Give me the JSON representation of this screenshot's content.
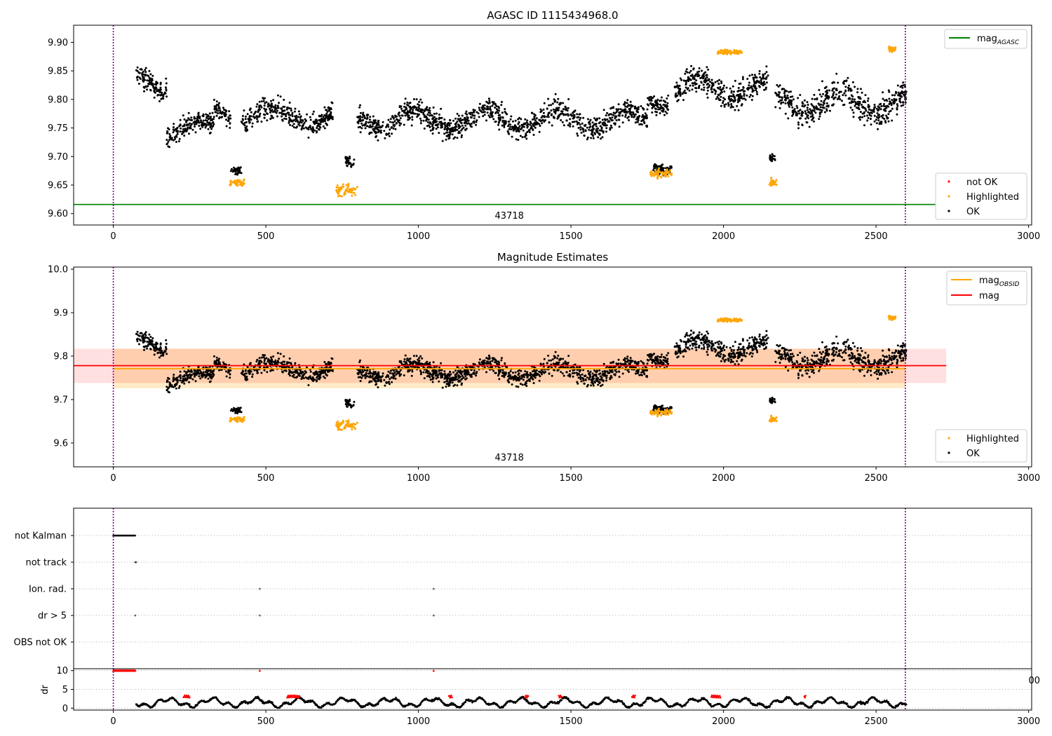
{
  "chart_data": [
    {
      "type": "scatter",
      "title": "AGASC ID 1115434968.0",
      "xlabel": "",
      "ylabel": "",
      "xlim": [
        -130,
        3010
      ],
      "ylim": [
        9.58,
        9.93
      ],
      "x_ticks": [
        0,
        500,
        1000,
        1500,
        2000,
        2500,
        3000
      ],
      "y_ticks": [
        9.6,
        9.65,
        9.7,
        9.75,
        9.8,
        9.85,
        9.9
      ],
      "x_tick_labels": [
        "0",
        "500",
        "1000",
        "1500",
        "2000",
        "2500",
        "3000"
      ],
      "y_tick_labels": [
        "9.60",
        "9.65",
        "9.70",
        "9.75",
        "9.80",
        "9.85",
        "9.90"
      ],
      "vlines": [
        0,
        2596
      ],
      "hline": {
        "name": "mag_AGASC",
        "value": 9.616,
        "color": "#008000"
      },
      "obsid_label": {
        "text": "43718",
        "x": 1298
      },
      "legend_top": {
        "position": "top-right",
        "entries": [
          {
            "label": "mag",
            "sub": "AGASC",
            "color": "#008000"
          }
        ]
      },
      "legend_bottom": {
        "position": "lower-right",
        "entries": [
          {
            "label": "not OK",
            "color": "#ff0000"
          },
          {
            "label": "Highlighted",
            "color": "#ffa500"
          },
          {
            "label": "OK",
            "color": "#000000"
          }
        ]
      },
      "series": [
        {
          "label": "OK",
          "color": "#000000",
          "segments": [
            [
              75,
              175,
              9.83,
              0.03
            ],
            [
              175,
              330,
              9.75,
              0.028
            ],
            [
              330,
              385,
              9.78,
              0.025
            ],
            [
              385,
              420,
              9.68,
              0.01
            ],
            [
              420,
              720,
              9.77,
              0.03
            ],
            [
              760,
              790,
              9.685,
              0.015
            ],
            [
              800,
              1750,
              9.765,
              0.032
            ],
            [
              1750,
              1820,
              9.8,
              0.025
            ],
            [
              1770,
              1830,
              9.685,
              0.015
            ],
            [
              1840,
              2150,
              9.82,
              0.035
            ],
            [
              2150,
              2170,
              9.69,
              0.015
            ],
            [
              2170,
              2600,
              9.795,
              0.04
            ]
          ]
        },
        {
          "label": "Highlighted",
          "color": "#ffa500",
          "segments": [
            [
              380,
              430,
              9.655,
              0.012
            ],
            [
              730,
              800,
              9.64,
              0.018
            ],
            [
              1760,
              1830,
              9.67,
              0.012
            ],
            [
              2150,
              2175,
              9.655,
              0.01
            ],
            [
              1980,
              2060,
              9.883,
              0.006
            ],
            [
              2540,
              2570,
              9.888,
              0.008
            ]
          ]
        }
      ]
    },
    {
      "type": "scatter",
      "title": "Magnitude Estimates",
      "xlabel": "",
      "ylabel": "",
      "xlim": [
        -130,
        3010
      ],
      "ylim": [
        9.545,
        10.005
      ],
      "x_ticks": [
        0,
        500,
        1000,
        1500,
        2000,
        2500,
        3000
      ],
      "y_ticks": [
        9.6,
        9.7,
        9.8,
        9.9,
        10.0
      ],
      "x_tick_labels": [
        "0",
        "500",
        "1000",
        "1500",
        "2000",
        "2500",
        "3000"
      ],
      "y_tick_labels": [
        "9.6",
        "9.7",
        "9.8",
        "9.9",
        "10.0"
      ],
      "vlines": [
        0,
        2596
      ],
      "obsid_label": {
        "text": "43718",
        "x": 1298
      },
      "bands": [
        {
          "name": "mag_OBSID range",
          "x0": 0,
          "x1": 2596,
          "y0": 9.726,
          "y1": 9.817,
          "color": "#ffa500",
          "opacity": 0.22
        },
        {
          "name": "mag range",
          "x0": -130,
          "x1": 2730,
          "y0": 9.738,
          "y1": 9.817,
          "color": "#ff0000",
          "opacity": 0.12
        }
      ],
      "hlines": [
        {
          "name": "mag_OBSID",
          "x0": 0,
          "x1": 2596,
          "value": 9.771,
          "color": "#ffa500"
        },
        {
          "name": "mag",
          "x0": -130,
          "x1": 2730,
          "value": 9.778,
          "color": "#ff0000"
        }
      ],
      "legend_top": {
        "position": "top-right",
        "entries": [
          {
            "label": "mag",
            "sub": "OBSID",
            "color": "#ffa500"
          },
          {
            "label": "mag",
            "sub": "",
            "color": "#ff0000"
          }
        ]
      },
      "legend_bottom": {
        "position": "lower-right",
        "entries": [
          {
            "label": "Highlighted",
            "color": "#ffa500"
          },
          {
            "label": "OK",
            "color": "#000000"
          }
        ]
      }
    },
    {
      "type": "scatter",
      "title": "",
      "xlabel": "",
      "ylabel": "",
      "xlim": [
        -130,
        3010
      ],
      "categories": [
        "not Kalman",
        "not track",
        "Ion. rad.",
        "dr > 5",
        "OBS not OK"
      ],
      "flags": [
        {
          "category": "not Kalman",
          "x_ranges": [
            [
              0,
              72
            ]
          ]
        },
        {
          "category": "not track",
          "x_points": [
            72,
            75
          ]
        },
        {
          "category": "Ion. rad.",
          "x_points": [
            480,
            1050
          ]
        },
        {
          "category": "dr > 5",
          "x_points": [
            72,
            480,
            1050
          ]
        },
        {
          "category": "OBS not OK",
          "x_points": []
        }
      ],
      "vlines": [
        0,
        2596
      ],
      "right_partial_tick_label": "00"
    },
    {
      "type": "scatter",
      "title": "",
      "xlabel": "",
      "ylabel": "dr",
      "xlim": [
        -130,
        3010
      ],
      "ylim": [
        -0.5,
        10.5
      ],
      "x_ticks": [
        0,
        500,
        1000,
        1500,
        2000,
        2500,
        3000
      ],
      "y_ticks": [
        0,
        5,
        10
      ],
      "x_tick_labels": [
        "0",
        "500",
        "1000",
        "1500",
        "2000",
        "2500",
        "3000"
      ],
      "y_tick_labels": [
        "0",
        "5",
        "10"
      ],
      "vlines": [
        0,
        2596
      ],
      "capped": {
        "value": 10,
        "color": "#ff0000",
        "x_ranges": [
          [
            0,
            72
          ]
        ],
        "x_points": [
          480,
          1050
        ]
      },
      "high_dr_points": {
        "color": "#ff0000",
        "x_ranges": [
          [
            230,
            250
          ],
          [
            570,
            610
          ],
          [
            1100,
            1110
          ],
          [
            1350,
            1360
          ],
          [
            1460,
            1470
          ],
          [
            1700,
            1710
          ],
          [
            1960,
            1990
          ],
          [
            2265,
            2270
          ]
        ],
        "y": 3.1
      }
    }
  ]
}
